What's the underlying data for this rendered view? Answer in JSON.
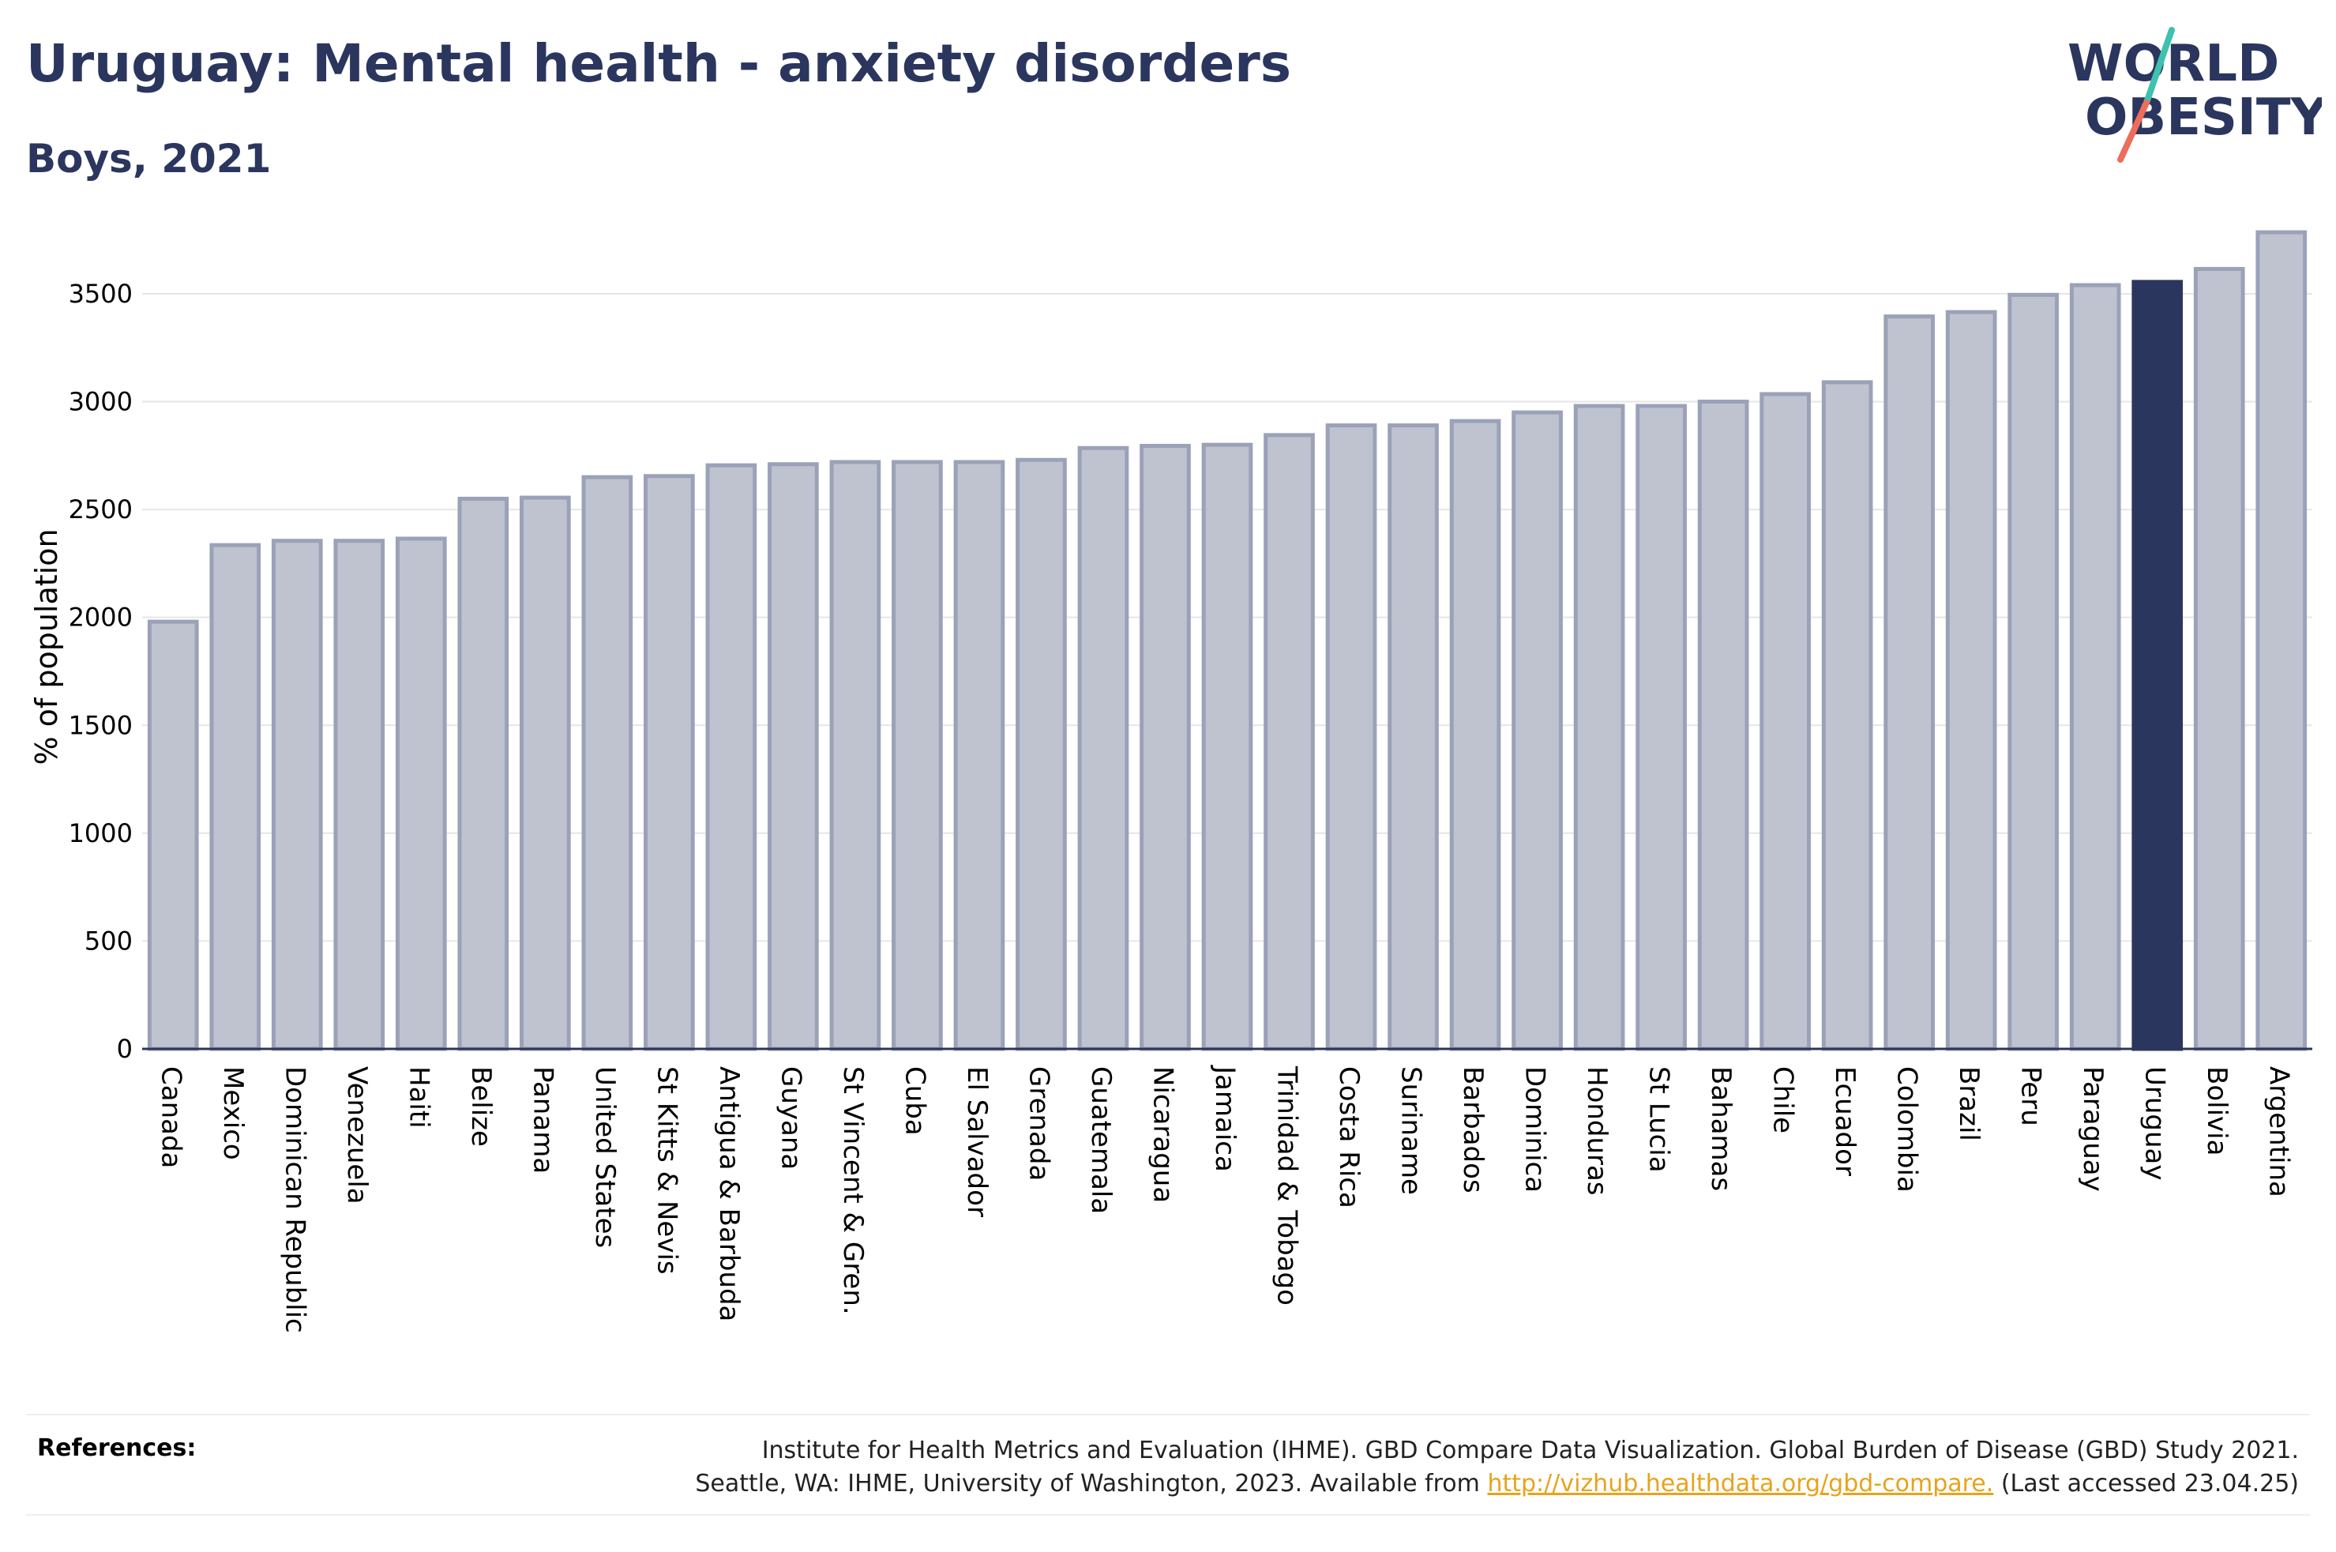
{
  "header": {
    "title": "Uruguay: Mental health - anxiety disorders",
    "subtitle": "Boys, 2021"
  },
  "logo": {
    "line1": "WORLD",
    "line2": "OBESITY"
  },
  "colors": {
    "highlight": "#2b365e",
    "bar_fill": "#bfc3d0",
    "bar_stroke": "#9ba1b8",
    "accent_teal": "#3fc1b0",
    "accent_coral": "#ee6c5a",
    "link": "#e8a31c"
  },
  "chart_data": {
    "type": "bar",
    "ylabel": "% of population",
    "ylim": [
      0,
      3800
    ],
    "yticks": [
      0,
      500,
      1000,
      1500,
      2000,
      2500,
      3000,
      3500
    ],
    "grid": true,
    "highlight": "Uruguay",
    "categories": [
      "Canada",
      "Mexico",
      "Dominican Republic",
      "Venezuela",
      "Haiti",
      "Belize",
      "Panama",
      "United States",
      "St Kitts & Nevis",
      "Antigua & Barbuda",
      "Guyana",
      "St Vincent & Gren.",
      "Cuba",
      "El Salvador",
      "Grenada",
      "Guatemala",
      "Nicaragua",
      "Jamaica",
      "Trinidad & Tobago",
      "Costa Rica",
      "Suriname",
      "Barbados",
      "Dominica",
      "Honduras",
      "St Lucia",
      "Bahamas",
      "Chile",
      "Ecuador",
      "Colombia",
      "Brazil",
      "Peru",
      "Paraguay",
      "Uruguay",
      "Bolivia",
      "Argentina"
    ],
    "values": [
      1980,
      2335,
      2355,
      2355,
      2365,
      2550,
      2555,
      2650,
      2655,
      2705,
      2710,
      2720,
      2720,
      2720,
      2730,
      2785,
      2795,
      2800,
      2845,
      2890,
      2890,
      2910,
      2950,
      2980,
      2980,
      3000,
      3035,
      3090,
      3395,
      3415,
      3495,
      3540,
      3555,
      3615,
      3785
    ]
  },
  "references": {
    "label": "References:",
    "line1": "Institute for Health Metrics and Evaluation (IHME). GBD Compare Data Visualization. Global Burden of Disease (GBD) Study 2021.",
    "line2_pre": "Seattle, WA: IHME, University of Washington, 2023. Available from",
    "link": "http://vizhub.healthdata.org/gbd-compare.",
    "line2_post": "(Last accessed 23.04.25)"
  }
}
